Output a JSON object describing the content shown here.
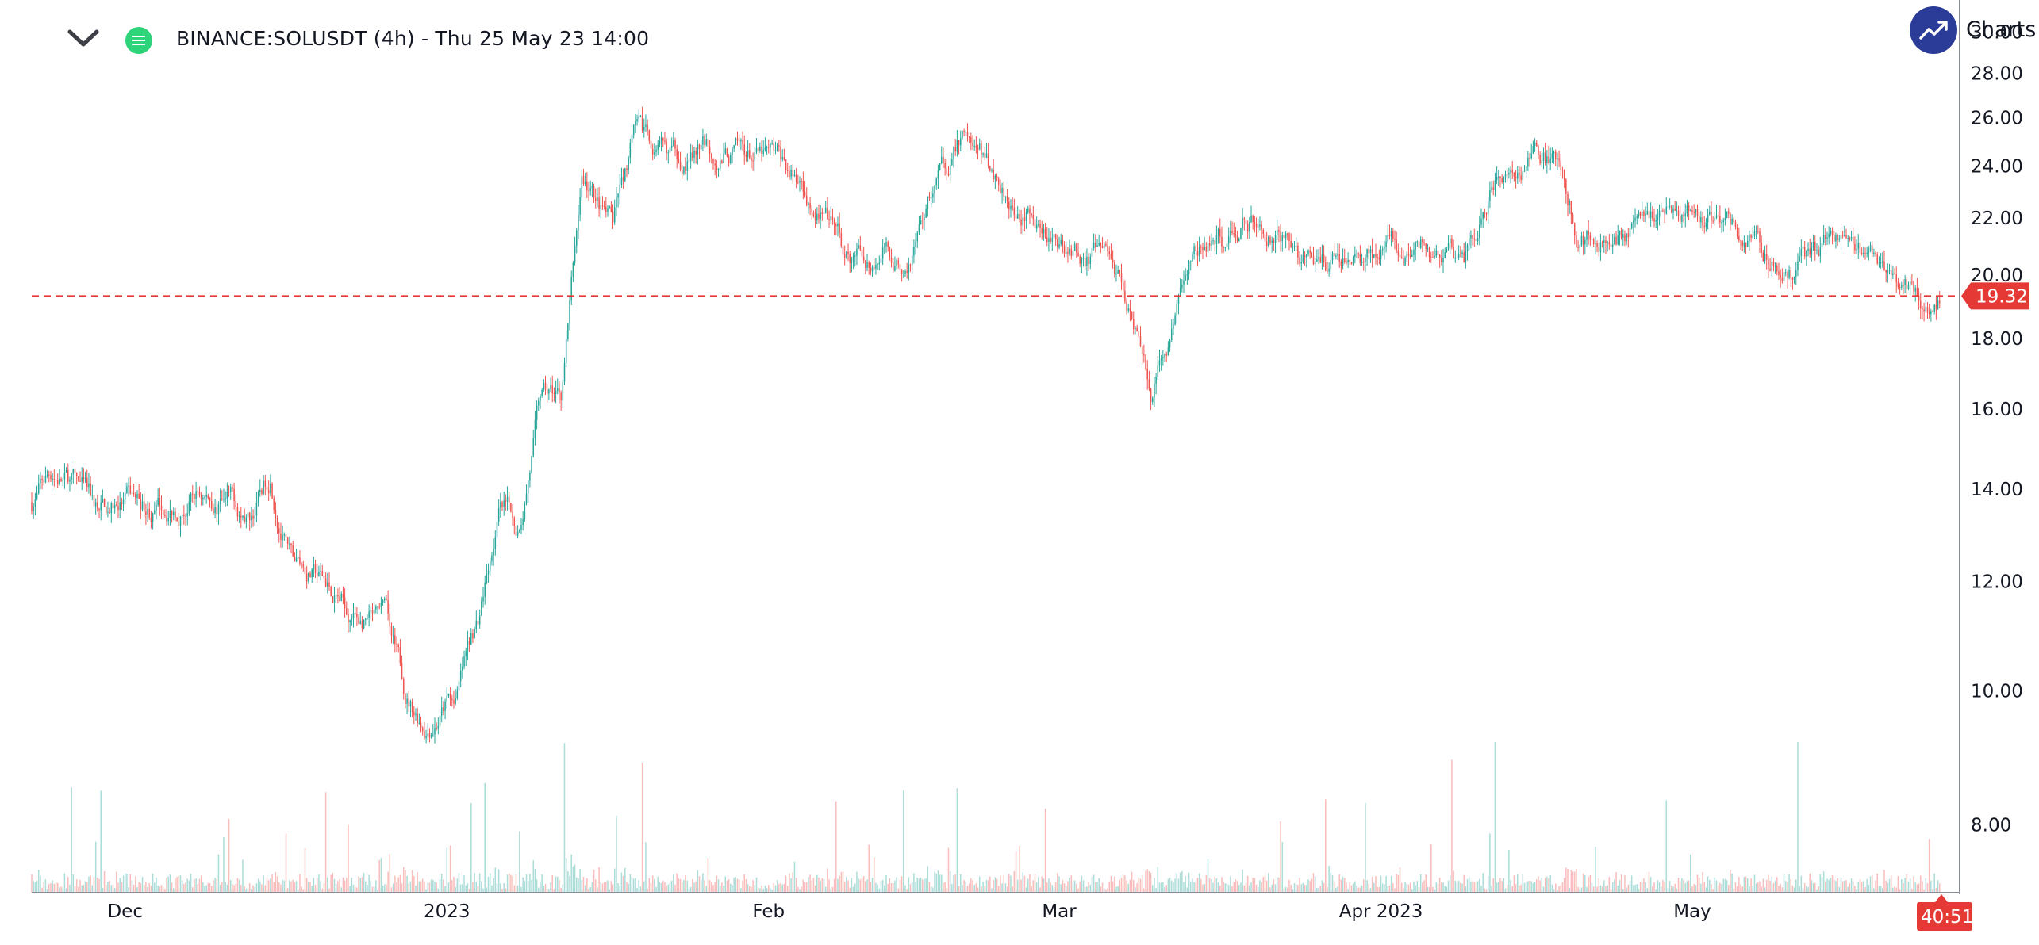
{
  "header": {
    "title": "BINANCE:SOLUSDT (4h) - Thu 25 May 23 14:00",
    "collapse_icon": "chevron-down-icon",
    "status_icon": "market-status-icon"
  },
  "badge": {
    "label": "Charts p",
    "icon": "trending-up-icon"
  },
  "colors": {
    "up": "#26a69a",
    "down": "#ef5350",
    "price_line": "#e53935"
  },
  "chart_data": {
    "type": "candlestick",
    "symbol": "BINANCE:SOLUSDT",
    "interval": "4h",
    "scale": "log",
    "ylim": [
      7.2,
      30.5
    ],
    "y_ticks": [
      "8.00",
      "10.00",
      "12.00",
      "14.00",
      "16.00",
      "18.00",
      "20.00",
      "22.00",
      "24.00",
      "26.00",
      "28.00",
      "30.00"
    ],
    "x_ticks": [
      "Dec",
      "2023",
      "Feb",
      "Mar",
      "Apr 2023",
      "May"
    ],
    "x_tick_dates": [
      "2022-12-01",
      "2023-01-01",
      "2023-02-01",
      "2023-03-01",
      "2023-04-01",
      "2023-05-01"
    ],
    "x_range": [
      "2022-11-22",
      "2023-05-26"
    ],
    "last_price": "19.32",
    "countdown": "40:51",
    "price_path": [
      {
        "date": "2022-11-22",
        "price": 13.7
      },
      {
        "date": "2022-11-24",
        "price": 14.4
      },
      {
        "date": "2022-11-26",
        "price": 14.1
      },
      {
        "date": "2022-11-28",
        "price": 13.4
      },
      {
        "date": "2022-12-01",
        "price": 13.7
      },
      {
        "date": "2022-12-04",
        "price": 13.5
      },
      {
        "date": "2022-12-08",
        "price": 13.9
      },
      {
        "date": "2022-12-11",
        "price": 13.6
      },
      {
        "date": "2022-12-13",
        "price": 13.3
      },
      {
        "date": "2022-12-15",
        "price": 14.4
      },
      {
        "date": "2022-12-17",
        "price": 12.4
      },
      {
        "date": "2022-12-20",
        "price": 12.0
      },
      {
        "date": "2022-12-23",
        "price": 11.4
      },
      {
        "date": "2022-12-26",
        "price": 11.0
      },
      {
        "date": "2022-12-28",
        "price": 9.9
      },
      {
        "date": "2022-12-30",
        "price": 9.5
      },
      {
        "date": "2023-01-02",
        "price": 10.0
      },
      {
        "date": "2023-01-04",
        "price": 11.2
      },
      {
        "date": "2023-01-06",
        "price": 13.5
      },
      {
        "date": "2023-01-08",
        "price": 13.1
      },
      {
        "date": "2023-01-10",
        "price": 16.2
      },
      {
        "date": "2023-01-12",
        "price": 16.3
      },
      {
        "date": "2023-01-14",
        "price": 23.5
      },
      {
        "date": "2023-01-17",
        "price": 21.5
      },
      {
        "date": "2023-01-19",
        "price": 25.0
      },
      {
        "date": "2023-01-22",
        "price": 24.0
      },
      {
        "date": "2023-01-26",
        "price": 24.7
      },
      {
        "date": "2023-01-29",
        "price": 24.5
      },
      {
        "date": "2023-02-02",
        "price": 24.0
      },
      {
        "date": "2023-02-06",
        "price": 22.5
      },
      {
        "date": "2023-02-09",
        "price": 20.2
      },
      {
        "date": "2023-02-12",
        "price": 21.0
      },
      {
        "date": "2023-02-14",
        "price": 20.3
      },
      {
        "date": "2023-02-17",
        "price": 23.3
      },
      {
        "date": "2023-02-20",
        "price": 25.5
      },
      {
        "date": "2023-02-23",
        "price": 23.5
      },
      {
        "date": "2023-02-27",
        "price": 22.0
      },
      {
        "date": "2023-03-02",
        "price": 21.0
      },
      {
        "date": "2023-03-06",
        "price": 20.5
      },
      {
        "date": "2023-03-09",
        "price": 18.3
      },
      {
        "date": "2023-03-10",
        "price": 16.8
      },
      {
        "date": "2023-03-12",
        "price": 18.5
      },
      {
        "date": "2023-03-14",
        "price": 20.5
      },
      {
        "date": "2023-03-17",
        "price": 21.0
      },
      {
        "date": "2023-03-19",
        "price": 22.2
      },
      {
        "date": "2023-03-22",
        "price": 21.5
      },
      {
        "date": "2023-03-25",
        "price": 20.3
      },
      {
        "date": "2023-03-28",
        "price": 20.3
      },
      {
        "date": "2023-04-01",
        "price": 20.6
      },
      {
        "date": "2023-04-05",
        "price": 20.8
      },
      {
        "date": "2023-04-09",
        "price": 20.4
      },
      {
        "date": "2023-04-12",
        "price": 23.5
      },
      {
        "date": "2023-04-15",
        "price": 24.4
      },
      {
        "date": "2023-04-18",
        "price": 24.0
      },
      {
        "date": "2023-04-20",
        "price": 21.5
      },
      {
        "date": "2023-04-23",
        "price": 21.3
      },
      {
        "date": "2023-04-26",
        "price": 21.9
      },
      {
        "date": "2023-04-29",
        "price": 22.5
      },
      {
        "date": "2023-05-02",
        "price": 21.8
      },
      {
        "date": "2023-05-05",
        "price": 21.7
      },
      {
        "date": "2023-05-08",
        "price": 20.5
      },
      {
        "date": "2023-05-11",
        "price": 20.1
      },
      {
        "date": "2023-05-14",
        "price": 20.9
      },
      {
        "date": "2023-05-17",
        "price": 20.5
      },
      {
        "date": "2023-05-20",
        "price": 19.9
      },
      {
        "date": "2023-05-22",
        "price": 19.7
      },
      {
        "date": "2023-05-24",
        "price": 19.2
      },
      {
        "date": "2023-05-25",
        "price": 19.32
      }
    ]
  }
}
